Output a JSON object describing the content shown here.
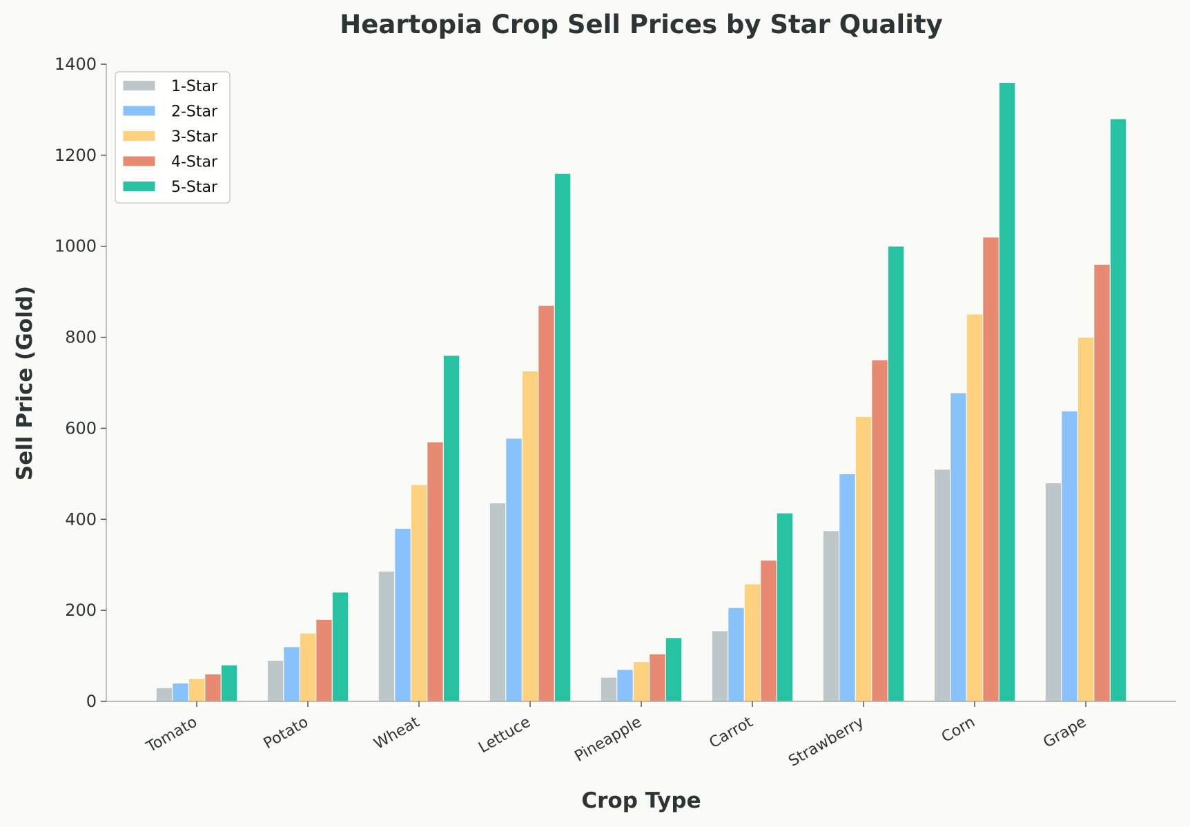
{
  "chart_data": {
    "type": "bar",
    "title": "Heartopia Crop Sell Prices by Star Quality",
    "xlabel": "Crop Type",
    "ylabel": "Sell Price (Gold)",
    "ylim": [
      0,
      1400
    ],
    "yticks": [
      "0",
      "200",
      "400",
      "600",
      "800",
      "1000",
      "1200",
      "1400"
    ],
    "grid": false,
    "legend_position": "top-left",
    "categories": [
      "Tomato",
      "Potato",
      "Wheat",
      "Lettuce",
      "Pineapple",
      "Carrot",
      "Strawberry",
      "Corn",
      "Grape"
    ],
    "series": [
      {
        "name": "1-Star",
        "color": "#bdc7c9",
        "values": [
          30,
          90,
          286,
          436,
          53,
          155,
          375,
          510,
          480
        ]
      },
      {
        "name": "2-Star",
        "color": "#89c2fa",
        "values": [
          40,
          120,
          380,
          578,
          70,
          206,
          500,
          678,
          638
        ]
      },
      {
        "name": "3-Star",
        "color": "#fdd17e",
        "values": [
          50,
          150,
          476,
          726,
          87,
          258,
          626,
          851,
          800
        ]
      },
      {
        "name": "4-Star",
        "color": "#e88a71",
        "values": [
          60,
          180,
          570,
          870,
          104,
          310,
          750,
          1020,
          960
        ]
      },
      {
        "name": "5-Star",
        "color": "#27c2a1",
        "values": [
          80,
          240,
          760,
          1160,
          140,
          414,
          1000,
          1360,
          1280
        ]
      }
    ]
  }
}
